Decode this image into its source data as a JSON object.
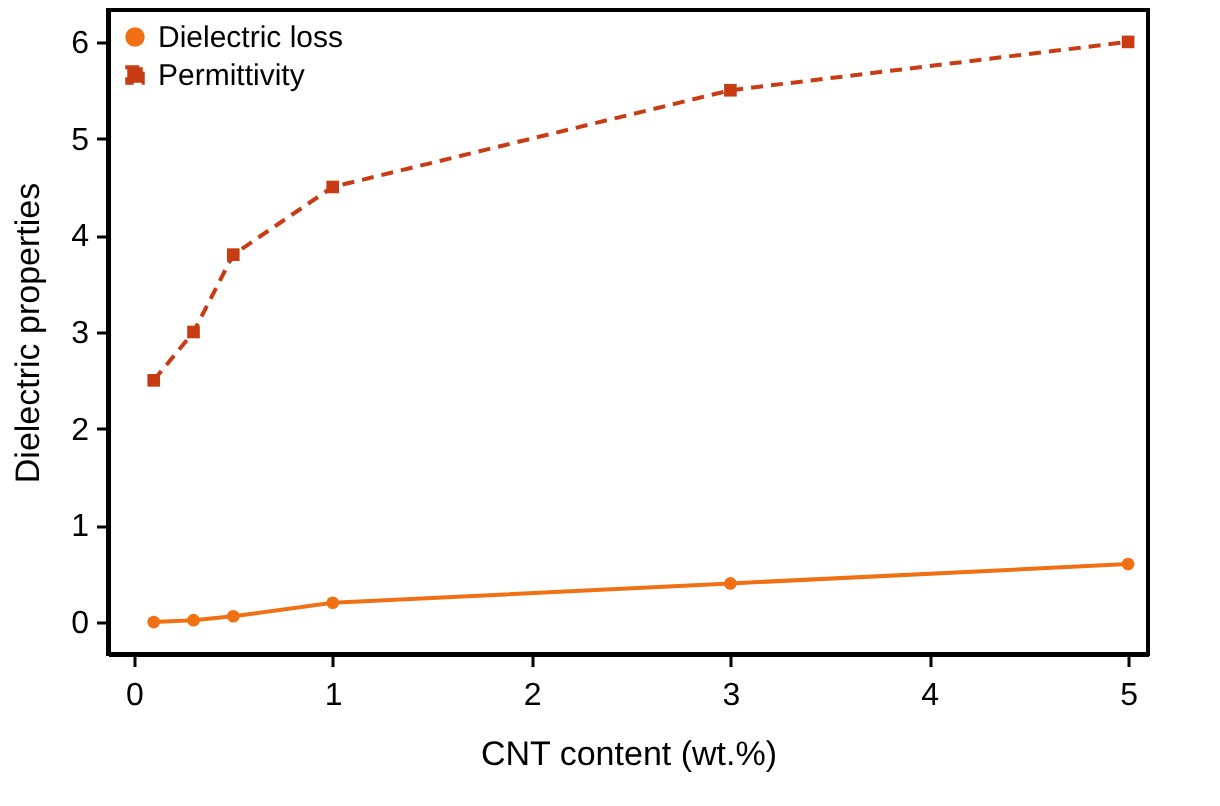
{
  "chart_data": {
    "type": "line",
    "xlabel": "CNT content (wt.%)",
    "ylabel": "Dielectric properties",
    "x": [
      0.1,
      0.3,
      0.5,
      1,
      3,
      5
    ],
    "series": [
      {
        "name": "Dielectric loss",
        "color": "#f07014",
        "values": [
          0,
          0.02,
          0.06,
          0.2,
          0.4,
          0.6
        ],
        "marker": "circle",
        "line_style": "solid"
      },
      {
        "name": "Permittivity",
        "color": "#c83c14",
        "values": [
          2.5,
          3.0,
          3.8,
          4.5,
          5.5,
          6.0
        ],
        "marker": "square",
        "line_style": "dashed"
      }
    ],
    "xlim": [
      -0.13,
      5.1
    ],
    "xticks": [
      0,
      1,
      2,
      3,
      4,
      5
    ],
    "ylim": [
      -0.33,
      6.33
    ],
    "yticks": [
      0,
      1,
      2,
      3,
      4,
      5,
      6
    ],
    "grid": false,
    "legend": "top left"
  }
}
